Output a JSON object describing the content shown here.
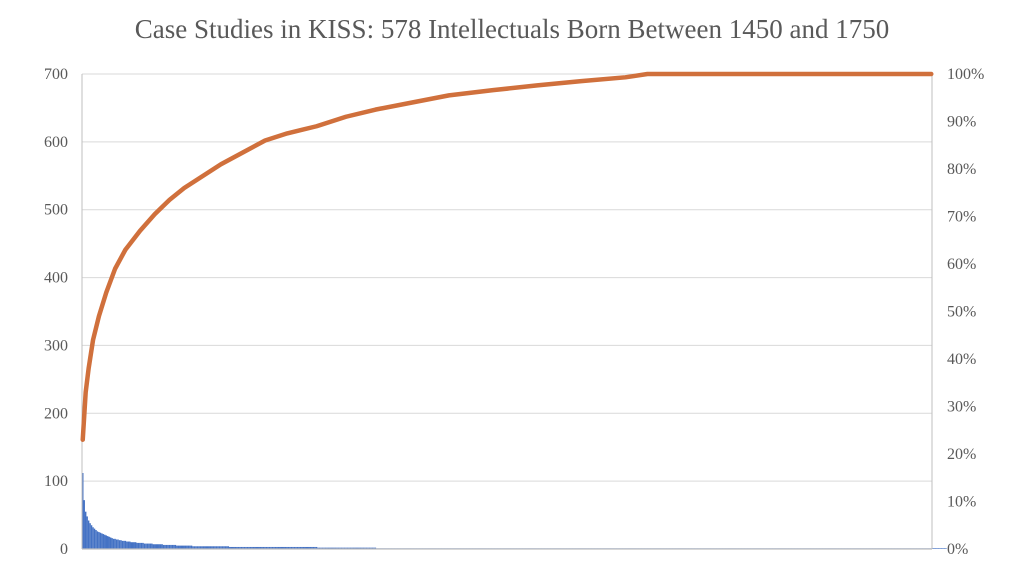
{
  "chart_data": {
    "type": "bar",
    "title": "Case Studies in KISS: 578 Intellectuals Born Between 1450 and 1750",
    "ylim": [
      0,
      700
    ],
    "y_ticks": [
      "700",
      "600",
      "500",
      "400",
      "300",
      "200",
      "100",
      "0"
    ],
    "y2lim": [
      0,
      1
    ],
    "y2_ticks": [
      "100%",
      "90%",
      "80%",
      "70%",
      "60%",
      "50%",
      "40%",
      "30%",
      "20%",
      "10%",
      "0%"
    ],
    "grid": true,
    "colors": {
      "bars": "#4472c4",
      "cumulative": "#d0703c",
      "grid": "#d9d9d9",
      "axis": "#bfbfbf",
      "text": "#595959"
    },
    "bar_series": {
      "type": "bar",
      "axis": "left",
      "x_start": 1,
      "x_end": 578,
      "values": [
        112,
        72,
        55,
        48,
        42,
        38,
        35,
        32,
        30,
        28,
        26,
        25,
        24,
        23,
        22,
        21,
        20,
        19,
        18,
        17,
        16,
        15,
        15,
        14,
        14,
        13,
        13,
        12,
        12,
        12,
        11,
        11,
        11,
        10,
        10,
        10,
        10,
        9,
        9,
        9,
        9,
        9,
        8,
        8,
        8,
        8,
        8,
        8,
        7,
        7,
        7,
        7,
        7,
        7,
        7,
        6,
        6,
        6,
        6,
        6,
        6,
        6,
        6,
        6,
        5,
        5,
        5,
        5,
        5,
        5,
        5,
        5,
        5,
        5,
        5,
        4,
        4,
        4,
        4,
        4,
        4,
        4,
        4,
        4,
        4,
        4,
        4,
        4,
        4,
        4,
        4,
        4,
        4,
        4,
        4,
        4,
        4,
        4,
        4,
        4,
        3,
        3,
        3,
        3,
        3,
        3,
        3,
        3,
        3,
        3,
        3,
        3,
        3,
        3,
        3,
        3,
        3,
        3,
        3,
        3,
        3,
        3,
        3,
        3,
        3,
        3,
        3,
        3,
        3,
        3,
        3,
        3,
        3,
        3,
        3,
        3,
        3,
        3,
        3,
        3,
        3,
        3,
        3,
        3,
        3,
        3,
        3,
        3,
        3,
        3,
        3,
        3,
        3,
        3,
        3,
        3,
        3,
        3,
        3,
        3,
        2,
        2,
        2,
        2,
        2,
        2,
        2,
        2,
        2,
        2,
        2,
        2,
        2,
        2,
        2,
        2,
        2,
        2,
        2,
        2,
        2,
        2,
        2,
        2,
        2,
        2,
        2,
        2,
        2,
        2,
        2,
        2,
        2,
        2,
        2,
        2,
        2,
        2,
        2,
        2,
        1,
        1,
        1,
        1,
        1,
        1,
        1,
        1,
        1,
        1,
        1,
        1,
        1,
        1,
        1,
        1,
        1,
        1,
        1,
        1,
        1,
        1,
        1,
        1,
        1,
        1,
        1,
        1,
        1,
        1,
        1,
        1,
        1,
        1,
        1,
        1,
        1,
        1,
        1,
        1,
        1,
        1,
        1,
        1,
        1,
        1,
        1,
        1,
        1,
        1,
        1,
        1,
        1,
        1,
        1,
        1,
        1,
        1,
        1,
        1,
        1,
        1,
        1,
        1,
        1,
        1,
        1,
        1,
        1,
        1,
        1,
        1,
        1,
        1,
        1,
        1,
        1,
        1,
        1,
        1,
        1,
        1,
        1,
        1,
        1,
        1,
        1,
        1,
        1,
        1,
        1,
        1,
        1,
        1,
        1,
        1,
        1,
        1,
        1,
        1,
        1,
        1,
        1,
        1,
        1,
        1,
        1,
        1,
        1,
        1,
        1,
        1,
        1,
        1,
        1,
        1,
        1,
        1,
        1,
        1,
        1,
        1,
        1,
        1,
        1,
        1,
        1,
        1,
        1,
        1,
        1,
        1,
        1,
        1,
        1,
        1,
        1,
        1,
        1,
        1,
        1,
        1,
        1,
        1,
        1,
        1,
        1,
        1,
        1,
        1,
        1,
        1,
        1,
        1,
        1,
        1,
        1,
        1,
        1,
        1,
        1,
        1,
        1,
        1,
        1,
        1,
        1,
        1,
        1,
        1,
        1,
        1,
        1,
        1,
        1,
        1,
        1,
        1,
        1,
        1,
        1,
        1,
        1,
        1,
        1,
        1,
        1,
        1,
        1,
        1,
        1,
        1,
        1,
        1,
        1,
        1,
        1,
        1,
        1,
        1,
        1,
        1,
        1,
        1,
        1,
        1,
        1,
        1,
        1,
        1,
        1,
        1,
        1,
        1,
        1,
        1,
        1,
        1,
        1,
        1,
        1,
        1,
        1,
        1,
        1,
        1,
        1,
        1,
        1,
        1,
        1,
        1,
        1,
        1,
        1,
        1,
        1,
        1,
        1,
        1,
        1,
        1,
        1,
        1,
        1,
        1,
        1,
        1,
        1,
        1,
        1,
        1,
        1,
        1,
        1,
        1,
        1,
        1,
        1,
        1,
        1,
        1,
        1,
        1,
        1,
        1,
        1,
        1,
        1,
        1,
        1,
        1,
        1,
        1,
        1,
        1,
        1,
        1,
        1,
        1,
        1,
        1,
        1,
        1,
        1,
        1,
        1,
        1,
        1,
        1,
        1,
        1,
        1,
        1,
        1,
        1,
        1,
        1,
        1,
        1,
        1,
        1,
        1,
        1,
        1,
        1,
        1,
        1,
        1,
        1,
        1,
        1,
        1,
        1,
        1,
        1,
        1,
        1,
        1,
        1,
        1,
        1,
        1,
        1,
        1,
        1,
        1,
        1,
        1,
        1,
        1,
        1,
        1,
        1,
        1,
        1,
        1,
        1,
        1,
        1,
        1,
        1,
        1,
        1,
        1,
        1,
        1,
        1,
        1,
        1,
        1,
        1,
        1,
        1,
        1,
        1,
        1,
        1,
        1,
        1,
        1,
        1,
        1,
        1,
        1,
        1,
        1,
        1,
        1,
        1,
        1,
        1,
        1,
        1,
        1,
        1,
        1,
        1,
        1,
        1,
        1,
        1,
        1,
        1,
        1,
        1,
        1,
        1
      ]
    },
    "line_series": {
      "type": "line",
      "axis": "right",
      "x": [
        1,
        2,
        3,
        5,
        8,
        12,
        17,
        23,
        30,
        40,
        50,
        60,
        70,
        80,
        95,
        110,
        125,
        140,
        160,
        180,
        200,
        225,
        250,
        280,
        310,
        340,
        370,
        385,
        400,
        420,
        440,
        460,
        480,
        500,
        520,
        540,
        560,
        578
      ],
      "y": [
        0.23,
        0.28,
        0.33,
        0.38,
        0.44,
        0.49,
        0.54,
        0.59,
        0.63,
        0.67,
        0.705,
        0.735,
        0.76,
        0.78,
        0.81,
        0.835,
        0.86,
        0.875,
        0.89,
        0.91,
        0.925,
        0.94,
        0.955,
        0.966,
        0.976,
        0.985,
        0.993,
        1.0,
        1.0,
        1.0,
        1.0,
        1.0,
        1.0,
        1.0,
        1.0,
        1.0,
        1.0,
        1.0
      ]
    }
  }
}
